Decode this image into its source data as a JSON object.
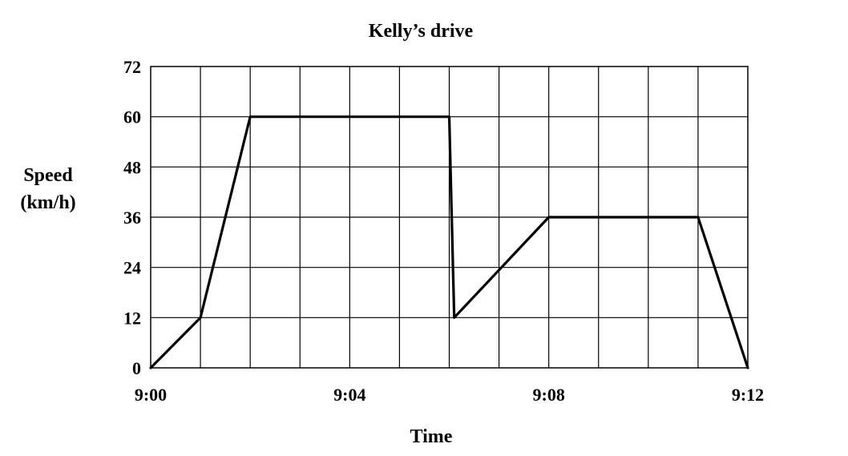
{
  "chart_data": {
    "type": "line",
    "title": "Kelly’s drive",
    "xlabel": "Time",
    "ylabel": [
      "Speed",
      "(km/h)"
    ],
    "x_ticks": [
      "9:00",
      "9:04",
      "9:08",
      "9:12"
    ],
    "y_ticks": [
      0,
      12,
      24,
      36,
      48,
      60,
      72
    ],
    "xlim": [
      0,
      12
    ],
    "ylim": [
      0,
      72
    ],
    "x_unit": "minutes after 9:00",
    "grid": true,
    "series": [
      {
        "x": [
          0,
          1,
          2,
          6,
          6.1,
          8,
          11,
          12
        ],
        "y": [
          0,
          12,
          60,
          60,
          12,
          36,
          36,
          0
        ]
      }
    ]
  }
}
